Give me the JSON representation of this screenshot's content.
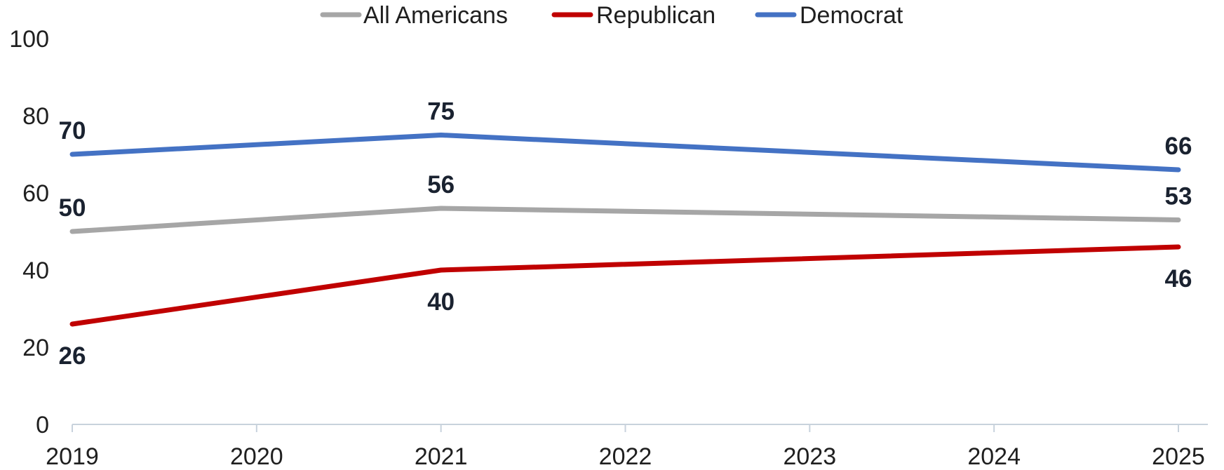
{
  "chart_data": {
    "type": "line",
    "title": "",
    "xlabel": "",
    "ylabel": "",
    "x": [
      2019,
      2021,
      2025
    ],
    "x_ticks": [
      "2019",
      "2020",
      "2021",
      "2022",
      "2023",
      "2024",
      "2025"
    ],
    "xlim": [
      2019,
      2025
    ],
    "ylim": [
      0,
      100
    ],
    "y_ticks": [
      "0",
      "20",
      "40",
      "60",
      "80",
      "100"
    ],
    "grid": false,
    "legend_position": "top-center",
    "series": [
      {
        "name": "All Americans",
        "color": "#a6a6a6",
        "x": [
          2019,
          2021,
          2025
        ],
        "values": [
          50,
          56,
          53
        ],
        "labels": [
          "50",
          "56",
          "53"
        ],
        "label_positions": [
          "above",
          "above",
          "above"
        ]
      },
      {
        "name": "Republican",
        "color": "#c00000",
        "x": [
          2019,
          2021,
          2025
        ],
        "values": [
          26,
          40,
          46
        ],
        "labels": [
          "26",
          "40",
          "46"
        ],
        "label_positions": [
          "below",
          "below",
          "below"
        ]
      },
      {
        "name": "Democrat",
        "color": "#4472c4",
        "x": [
          2019,
          2021,
          2025
        ],
        "values": [
          70,
          75,
          66
        ],
        "labels": [
          "70",
          "75",
          "66"
        ],
        "label_positions": [
          "above",
          "above",
          "above"
        ]
      }
    ]
  }
}
